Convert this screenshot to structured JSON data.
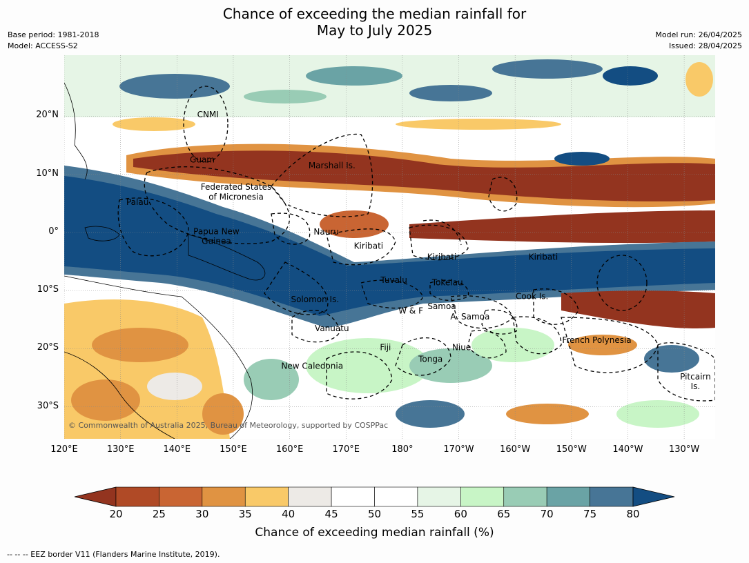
{
  "title_line1": "Chance of exceeding the median rainfall for",
  "title_line2": "May to July 2025",
  "meta_left": [
    "Base period: 1981-2018",
    "Model: ACCESS-S2"
  ],
  "meta_right": [
    "Model run: 26/04/2025",
    "Issued: 28/04/2025"
  ],
  "lat_ticks": [
    {
      "label": "20°N",
      "lat": 20
    },
    {
      "label": "10°N",
      "lat": 10
    },
    {
      "label": "0°",
      "lat": 0
    },
    {
      "label": "10°S",
      "lat": -10
    },
    {
      "label": "20°S",
      "lat": -20
    },
    {
      "label": "30°S",
      "lat": -30
    }
  ],
  "lon_ticks": [
    {
      "label": "120°E",
      "lon": 120
    },
    {
      "label": "130°E",
      "lon": 130
    },
    {
      "label": "140°E",
      "lon": 140
    },
    {
      "label": "150°E",
      "lon": 150
    },
    {
      "label": "160°E",
      "lon": 160
    },
    {
      "label": "170°E",
      "lon": 170
    },
    {
      "label": "180°",
      "lon": 180
    },
    {
      "label": "170°W",
      "lon": 190
    },
    {
      "label": "160°W",
      "lon": 200
    },
    {
      "label": "150°W",
      "lon": 210
    },
    {
      "label": "140°W",
      "lon": 220
    },
    {
      "label": "130°W",
      "lon": 230
    }
  ],
  "regions": [
    {
      "name": "CNMI",
      "lon": 145.5,
      "lat": 20.3
    },
    {
      "name": "Guam",
      "lon": 144.5,
      "lat": 12.5
    },
    {
      "name": "Marshall Is.",
      "lon": 167.5,
      "lat": 11.5
    },
    {
      "name": "Federated States",
      "lon": 150.5,
      "lat": 7.8
    },
    {
      "name": "of Micronesia",
      "lon": 150.5,
      "lat": 6.1
    },
    {
      "name": "Palau",
      "lon": 133,
      "lat": 5.2
    },
    {
      "name": "Papua New",
      "lon": 147,
      "lat": 0.2
    },
    {
      "name": "Guinea",
      "lon": 147,
      "lat": -1.5
    },
    {
      "name": "Nauru",
      "lon": 166.5,
      "lat": 0.1
    },
    {
      "name": "Kiribati",
      "lon": 174,
      "lat": -2.3
    },
    {
      "name": "Kiribati",
      "lon": 187,
      "lat": -4.2
    },
    {
      "name": "Kiribati",
      "lon": 205,
      "lat": -4.2
    },
    {
      "name": "Tuvalu",
      "lon": 178.5,
      "lat": -8.2
    },
    {
      "name": "Tokelau",
      "lon": 188,
      "lat": -8.6
    },
    {
      "name": "Cook Is.",
      "lon": 203,
      "lat": -11
    },
    {
      "name": "Solomon Is.",
      "lon": 164.5,
      "lat": -11.5
    },
    {
      "name": "Samoa",
      "lon": 187,
      "lat": -12.7
    },
    {
      "name": "W & F",
      "lon": 181.5,
      "lat": -13.5
    },
    {
      "name": "A. Samoa",
      "lon": 192,
      "lat": -14.5
    },
    {
      "name": "Vanuatu",
      "lon": 167.5,
      "lat": -16.5
    },
    {
      "name": "French Polynesia",
      "lon": 214.5,
      "lat": -18.5
    },
    {
      "name": "Fiji",
      "lon": 177,
      "lat": -19.8
    },
    {
      "name": "Niue",
      "lon": 190.5,
      "lat": -19.8
    },
    {
      "name": "Tonga",
      "lon": 185,
      "lat": -21.8
    },
    {
      "name": "New Caledonia",
      "lon": 164,
      "lat": -23
    },
    {
      "name": "Pitcairn",
      "lon": 232,
      "lat": -24.8
    },
    {
      "name": "Is.",
      "lon": 232,
      "lat": -26.5
    }
  ],
  "copyright": "© Commonwealth of Australia 2025, Bureau of Meteorology, supported by COSPPac",
  "colorbar": {
    "title": "Chance of exceeding median rainfall (%)",
    "ticks": [
      "20",
      "25",
      "30",
      "35",
      "40",
      "45",
      "50",
      "55",
      "60",
      "65",
      "70",
      "75",
      "80"
    ],
    "colors": [
      "#93341f",
      "#b04a26",
      "#c96533",
      "#e09342",
      "#f9c968",
      "#edeae6",
      "#ffffff",
      "#ffffff",
      "#e6f5e6",
      "#c8f5c6",
      "#99ccb5",
      "#6aa3a5",
      "#477596",
      "#134d82"
    ]
  },
  "footnote": "--  --  -- EEZ border V11 (Flanders Marine Institute, 2019).",
  "map_extent": {
    "lon_min": 120,
    "lon_max": 235.5,
    "lat_min": -35.5,
    "lat_max": 30.5
  }
}
